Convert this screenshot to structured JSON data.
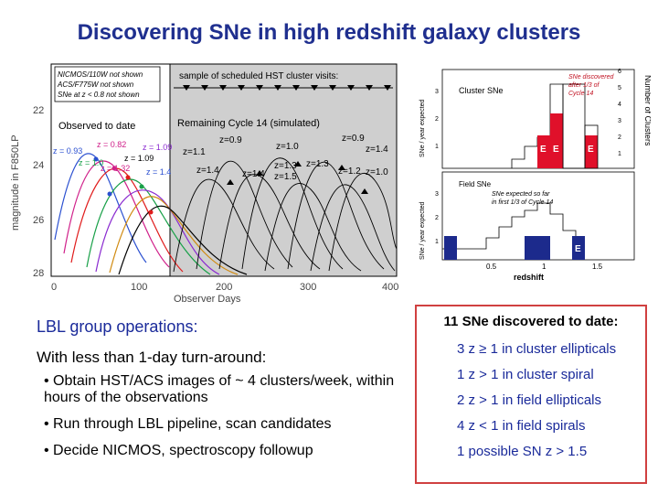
{
  "slide_title": "Discovering SNe in high redshift galaxy clusters",
  "lightcurve": {
    "ylabel": "magnitude in F850LP",
    "xlabel": "Observer Days",
    "x_ticks": [
      "0",
      "100",
      "200",
      "300",
      "400"
    ],
    "y_ticks": [
      "22",
      "24",
      "26",
      "28"
    ],
    "legend_lines": [
      "NICMOS/110W not shown",
      "ACS/F775W not shown",
      "SNe at z < 0.8 not shown"
    ],
    "visits_label": "sample of scheduled HST cluster visits:",
    "observed_label": "Observed to date",
    "remaining_label": "Remaining Cycle 14 (simulated)",
    "observed_z_labels": [
      "z = 0.93",
      "z = 0.82",
      "z = 1.09",
      "z = 1.0",
      "z = 1.32",
      "z = 1.09",
      "z = 1.4"
    ],
    "simulated_z_labels": [
      "z=1.1",
      "z=0.9",
      "z=1.0",
      "z=0.9",
      "z=1.4",
      "z=1.4",
      "z=1.4",
      "z=1.3",
      "z=1.5",
      "z=1.3",
      "z=1.2",
      "z=1.0"
    ]
  },
  "histogram": {
    "cluster_label": "Cluster SNe",
    "field_label": "Field SNe",
    "ylabel_top": "SNe / year expected",
    "ylabel_bottom": "SNe / year expected",
    "ylabel_right": "Number of Clusters",
    "note_top": [
      "SNe discovered",
      "after 1/3 of",
      "Cycle 14"
    ],
    "note_bottom": [
      "SNe expected so far",
      "in first 1/3 of Cycle 14"
    ],
    "xlabel": "redshift",
    "x_ticks": [
      "0.5",
      "1",
      "1.5"
    ],
    "y_ticks_top": [
      "3",
      "2",
      "1"
    ],
    "y_ticks_bottom": [
      "3",
      "2",
      "1"
    ],
    "y_ticks_right": [
      "6",
      "5",
      "4",
      "3",
      "2",
      "1"
    ],
    "elliptical_marker": "E",
    "colors": {
      "cluster": "#e0102a",
      "field": "#1c2a8c"
    }
  },
  "operations": {
    "heading": "LBL group operations:",
    "subheading": "With less than 1-day turn-around:",
    "bullets": [
      "• Obtain HST/ACS images of ~ 4 clusters/week, within hours of the observations",
      "• Run through LBL pipeline, scan candidates",
      "• Decide NICMOS, spectroscopy followup"
    ]
  },
  "discoveries": {
    "heading": "11 SNe discovered to date:",
    "items": [
      "3 z ≥ 1 in cluster ellipticals",
      "1 z > 1 in cluster spiral",
      "2 z > 1 in field ellipticals",
      "4 z < 1 in field spirals",
      "1 possible SN z > 1.5"
    ]
  }
}
